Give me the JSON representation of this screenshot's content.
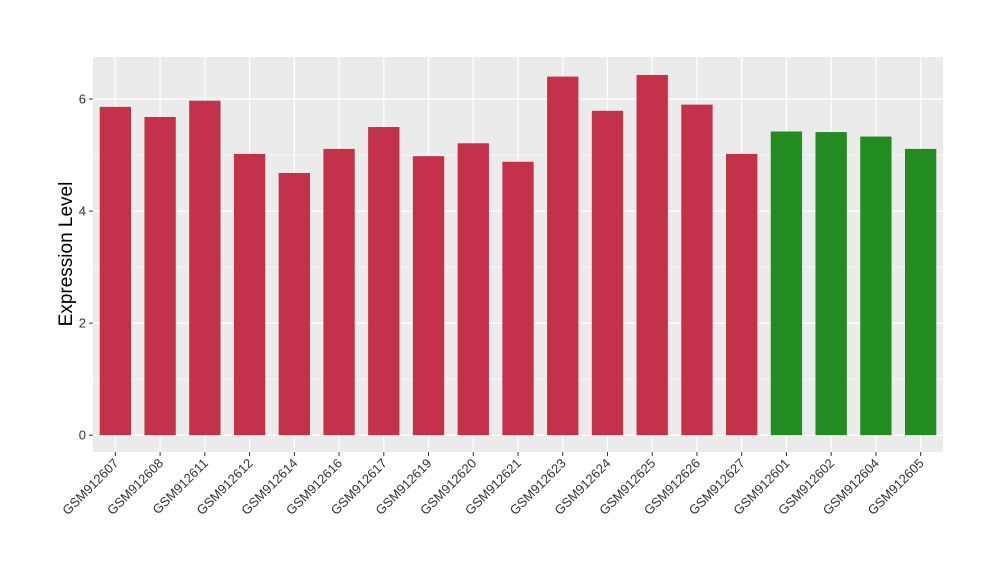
{
  "chart_data": {
    "type": "bar",
    "ylabel": "Expression Level",
    "xlabel": "",
    "ylim": [
      -0.3,
      6.75
    ],
    "yticks": [
      0,
      2,
      4,
      6
    ],
    "grid": true,
    "panel_background": "#EBEBEB",
    "grid_color": "#FFFFFF",
    "colors": {
      "group1": "#C4314B",
      "group2": "#228B22"
    },
    "categories": [
      "GSM912607",
      "GSM912608",
      "GSM912611",
      "GSM912612",
      "GSM912614",
      "GSM912616",
      "GSM912617",
      "GSM912619",
      "GSM912620",
      "GSM912621",
      "GSM912623",
      "GSM912624",
      "GSM912625",
      "GSM912626",
      "GSM912627",
      "GSM912601",
      "GSM912602",
      "GSM912604",
      "GSM912605"
    ],
    "values": [
      5.86,
      5.68,
      5.97,
      5.02,
      4.68,
      5.11,
      5.5,
      4.98,
      5.21,
      4.88,
      6.4,
      5.79,
      6.43,
      5.9,
      5.02,
      5.42,
      5.41,
      5.33,
      5.11
    ],
    "groups": [
      "group1",
      "group1",
      "group1",
      "group1",
      "group1",
      "group1",
      "group1",
      "group1",
      "group1",
      "group1",
      "group1",
      "group1",
      "group1",
      "group1",
      "group1",
      "group2",
      "group2",
      "group2",
      "group2"
    ]
  }
}
